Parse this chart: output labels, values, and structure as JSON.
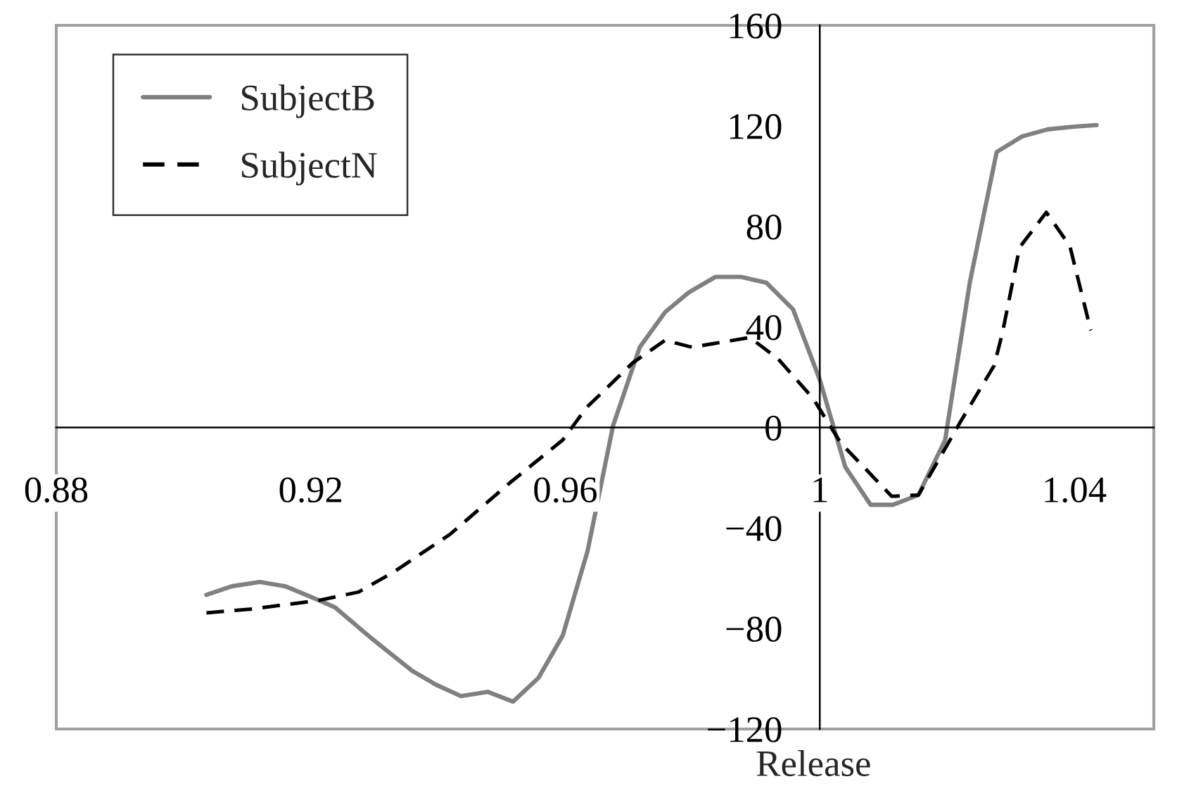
{
  "chart_data": {
    "type": "line",
    "xlabel": "Release",
    "xlim": [
      0.88,
      1.0525
    ],
    "xticks": [
      0.88,
      0.92,
      0.96,
      1,
      1.04
    ],
    "ylim": [
      -120,
      160
    ],
    "yticks": [
      {
        "value": -120,
        "label": "−120"
      },
      {
        "value": -80,
        "label": "−80"
      },
      {
        "value": -40,
        "label": "−40"
      },
      0,
      40,
      80,
      120,
      160
    ],
    "grid": false,
    "legend": "top left",
    "marker": "none",
    "series": [
      {
        "name": "SubjectB",
        "color": "#808080",
        "line_style": "solid",
        "x": [
          0.9036,
          0.9076,
          0.912,
          0.916,
          0.9213,
          0.9238,
          0.9293,
          0.9359,
          0.9397,
          0.9436,
          0.9478,
          0.9518,
          0.9558,
          0.9596,
          0.9635,
          0.9675,
          0.9717,
          0.9757,
          0.9794,
          0.9836,
          0.9876,
          0.9916,
          0.9958,
          1.0,
          1.004,
          1.008,
          1.0115,
          1.0155,
          1.0197,
          1.0236,
          1.0278,
          1.0318,
          1.0358,
          1.04,
          1.0435
        ],
        "values": [
          -66.6,
          -63.2,
          -61.5,
          -63.2,
          -68.8,
          -71.6,
          -83.4,
          -96.8,
          -102.4,
          -106.9,
          -105.2,
          -109.1,
          -99.6,
          -82.8,
          -49.2,
          0.6,
          31.9,
          45.9,
          53.7,
          59.9,
          59.9,
          57.6,
          47.0,
          19.0,
          -15.7,
          -30.8,
          -30.8,
          -26.9,
          -5.0,
          58.0,
          109.6,
          115.8,
          118.6,
          119.7,
          120.3
        ]
      },
      {
        "name": "SubjectN",
        "color": "#000000",
        "line_style": "dashed",
        "x": [
          0.9036,
          0.9109,
          0.9213,
          0.9275,
          0.933,
          0.9419,
          0.9514,
          0.9596,
          0.9633,
          0.9706,
          0.9757,
          0.9799,
          0.989,
          0.9934,
          0.9989,
          1.0033,
          1.0113,
          1.0155,
          1.0221,
          1.0274,
          1.0287,
          1.0314,
          1.0356,
          1.0393,
          1.0426
        ],
        "values": [
          -73.8,
          -72.2,
          -68.8,
          -65.5,
          -57.6,
          -42.5,
          -21.8,
          -5.0,
          7.8,
          25.7,
          34.7,
          31.9,
          35.8,
          27.4,
          11.7,
          -6.2,
          -27.4,
          -26.9,
          2.2,
          24.6,
          37.5,
          71.6,
          85.6,
          72.2,
          38.6
        ]
      }
    ]
  }
}
